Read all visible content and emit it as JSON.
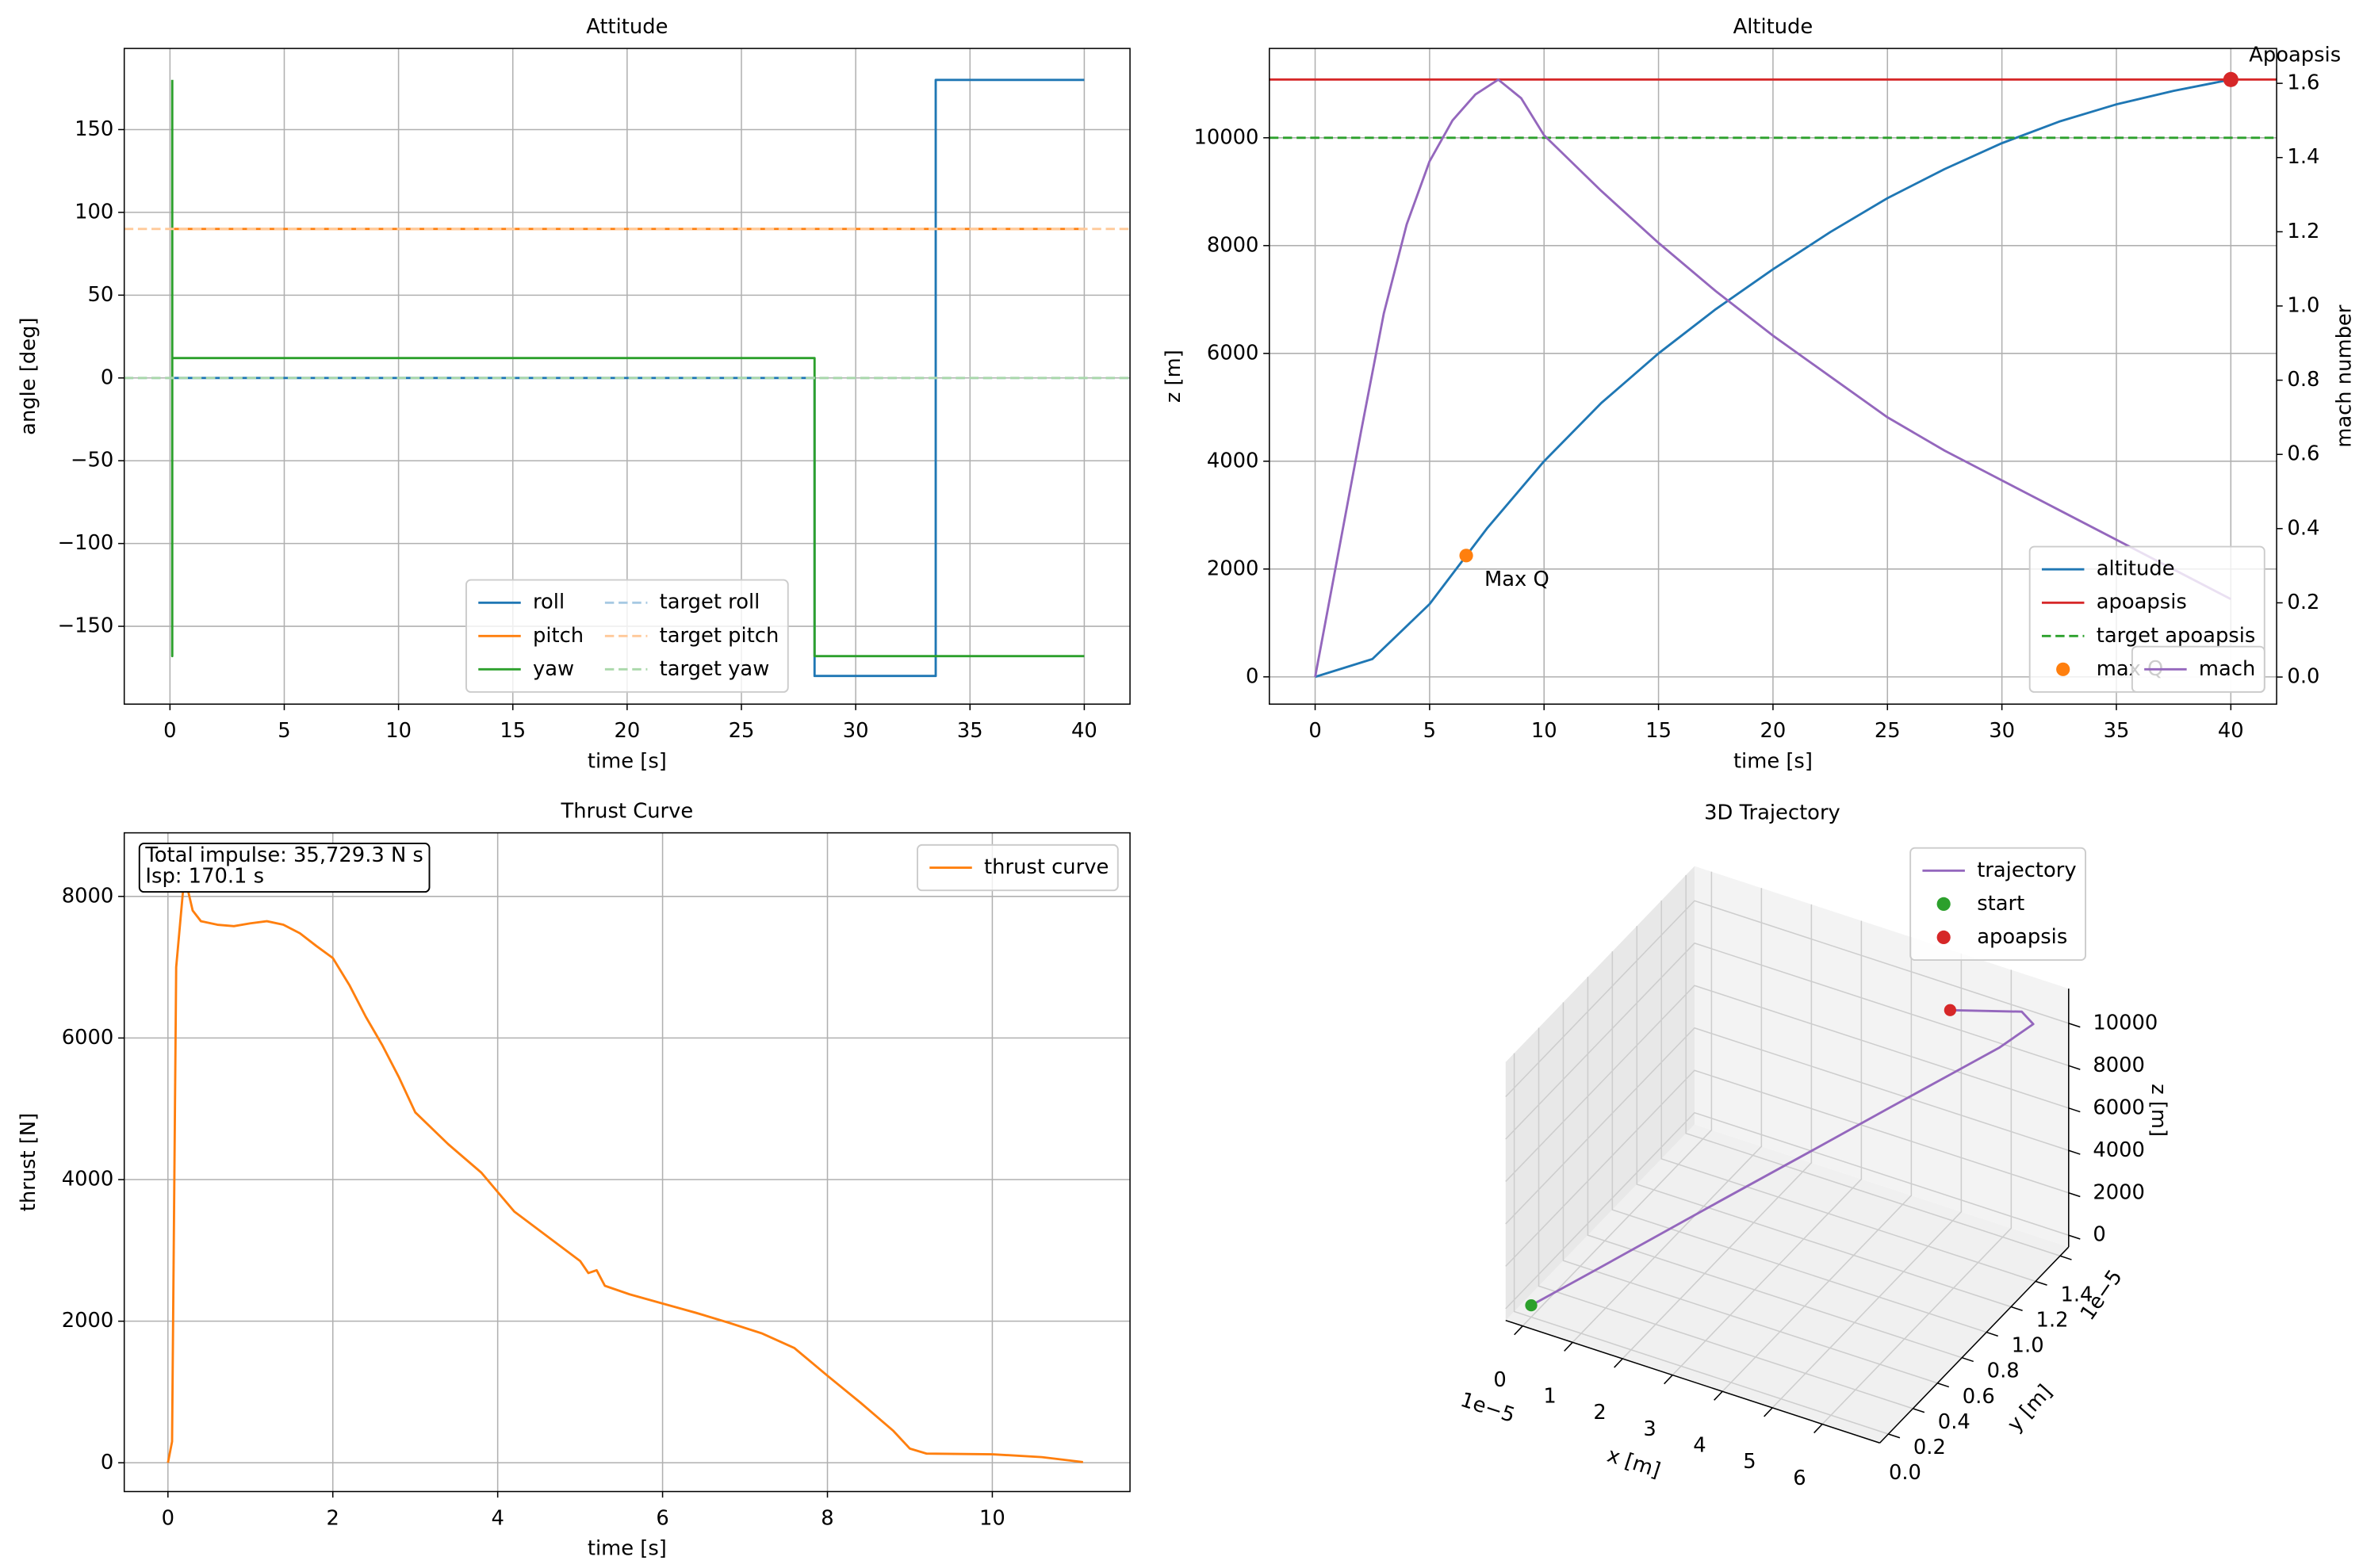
{
  "chart_data": [
    {
      "type": "line",
      "title": "Attitude",
      "xlabel": "time [s]",
      "ylabel": "angle [deg]",
      "xlim": [
        -2,
        42
      ],
      "ylim": [
        -197,
        199
      ],
      "xticks": [
        0,
        5,
        10,
        15,
        20,
        25,
        30,
        35,
        40
      ],
      "yticks": [
        {
          "value": -150,
          "label": "−150"
        },
        {
          "value": -100,
          "label": "−100"
        },
        {
          "value": -50,
          "label": "−50"
        },
        0,
        50,
        100,
        150
      ],
      "grid": true,
      "legend": "lower center",
      "legend_columns": 2,
      "series": [
        {
          "name": "roll",
          "color": "#1f77b4",
          "x": [
            0,
            28.2,
            28.2,
            33.5,
            33.5,
            40
          ],
          "values": [
            0,
            0,
            -180,
            -180,
            180,
            180
          ]
        },
        {
          "name": "pitch",
          "color": "#ff7f0e",
          "x": [
            0,
            40
          ],
          "values": [
            90,
            90
          ]
        },
        {
          "name": "yaw",
          "color": "#2ca02c",
          "x": [
            0.1,
            0.1,
            0.1,
            28.2,
            28.2,
            40
          ],
          "values": [
            180,
            -168,
            12,
            12,
            -168,
            -168
          ]
        },
        {
          "name": "target roll",
          "color": "#a6c9e3",
          "style": "dashed",
          "kind": "hline",
          "values": [
            0
          ]
        },
        {
          "name": "target pitch",
          "color": "#ffc999",
          "style": "dashed",
          "kind": "hline",
          "values": [
            90
          ]
        },
        {
          "name": "target yaw",
          "color": "#aad8aa",
          "style": "dashed",
          "kind": "hline",
          "values": [
            0
          ]
        }
      ]
    },
    {
      "type": "line",
      "title": "Altitude",
      "xlabel": "time [s]",
      "ylabel": "z [m]",
      "y2label": "mach number",
      "xlim": [
        -2,
        42
      ],
      "ylim": [
        -506,
        11657
      ],
      "y2lim": [
        -0.073,
        1.694
      ],
      "xticks": [
        0,
        5,
        10,
        15,
        20,
        25,
        30,
        35,
        40
      ],
      "yticks": [
        0,
        2000,
        4000,
        6000,
        8000,
        10000
      ],
      "y2ticks": [
        {
          "value": 0,
          "label": "0.0"
        },
        0.2,
        0.4,
        0.6,
        0.8,
        {
          "value": 1,
          "label": "1.0"
        },
        1.2,
        1.4,
        1.6
      ],
      "grid": true,
      "legend": "lower right",
      "series": [
        {
          "name": "altitude",
          "color": "#1f77b4",
          "x": [
            0,
            2.5,
            5,
            7.5,
            10,
            12.5,
            15,
            17.5,
            20,
            22.5,
            25,
            27.5,
            30,
            32.5,
            35,
            37.5,
            40
          ],
          "values": [
            0,
            330,
            1350,
            2750,
            4000,
            5080,
            6000,
            6820,
            7560,
            8250,
            8880,
            9420,
            9900,
            10300,
            10620,
            10870,
            11080
          ]
        },
        {
          "name": "apoapsis",
          "color": "#d62728",
          "kind": "hline",
          "values": [
            11080
          ]
        },
        {
          "name": "target apoapsis",
          "color": "#2ca02c",
          "style": "dashed",
          "kind": "hline",
          "values": [
            10000
          ]
        },
        {
          "name": "max Q",
          "color": "#ff7f0e",
          "kind": "scatter",
          "x": [
            6.6
          ],
          "values": [
            2250
          ]
        },
        {
          "name": "mach",
          "color": "#9467bd",
          "axis": "y2",
          "x": [
            0,
            1,
            2,
            3,
            4,
            5,
            6,
            7,
            8,
            9,
            10,
            12.5,
            15,
            17.5,
            20,
            22.5,
            25,
            27.5,
            30,
            32.5,
            35,
            37.5,
            40
          ],
          "values": [
            0,
            0.33,
            0.66,
            0.98,
            1.22,
            1.39,
            1.5,
            1.57,
            1.61,
            1.56,
            1.46,
            1.31,
            1.17,
            1.04,
            0.92,
            0.81,
            0.7,
            0.61,
            0.53,
            0.45,
            0.37,
            0.29,
            0.21
          ]
        }
      ],
      "annotations": [
        {
          "text": "Max Q",
          "x": 6.6,
          "y": 2250,
          "color": "#ff7f0e"
        },
        {
          "text": "Apoapsis",
          "x": 40,
          "y": 11080,
          "color": "#d62728",
          "marker": true
        }
      ]
    },
    {
      "type": "line",
      "title": "Thrust Curve",
      "xlabel": "time [s]",
      "ylabel": "thrust [N]",
      "xlim": [
        -0.53,
        11.67
      ],
      "ylim": [
        -406,
        8898
      ],
      "xticks": [
        0,
        2,
        4,
        6,
        8,
        10
      ],
      "yticks": [
        0,
        2000,
        4000,
        6000,
        8000
      ],
      "grid": true,
      "legend": "upper right",
      "text_box": [
        "Total impulse: 35,729.3 N s",
        "Isp: 170.1 s"
      ],
      "series": [
        {
          "name": "thrust curve",
          "color": "#ff7f0e",
          "x": [
            0,
            0.05,
            0.1,
            0.2,
            0.3,
            0.4,
            0.6,
            0.8,
            1.0,
            1.2,
            1.4,
            1.6,
            1.8,
            2.0,
            2.2,
            2.4,
            2.6,
            2.8,
            3.0,
            3.4,
            3.8,
            4.2,
            4.6,
            5.0,
            5.1,
            5.2,
            5.3,
            5.6,
            6.0,
            6.4,
            6.8,
            7.2,
            7.6,
            8.0,
            8.4,
            8.8,
            9.0,
            9.2,
            10.0,
            10.6,
            11.1
          ],
          "values": [
            0,
            300,
            7000,
            8300,
            7800,
            7650,
            7600,
            7580,
            7620,
            7650,
            7600,
            7480,
            7300,
            7130,
            6750,
            6300,
            5900,
            5450,
            4950,
            4500,
            4100,
            3550,
            3200,
            2850,
            2680,
            2720,
            2500,
            2380,
            2250,
            2120,
            1980,
            1830,
            1620,
            1230,
            850,
            450,
            200,
            130,
            120,
            80,
            10
          ]
        }
      ]
    },
    {
      "type": "line3d",
      "title": "3D Trajectory",
      "xlabel": "x [m]",
      "ylabel": "y [m]",
      "zlabel": "z [m]",
      "xoffset_text": "1e−5",
      "yoffset_text": "1e−5",
      "xlim": [
        -3.4e-06,
        7.15e-05
      ],
      "ylim": [
        -7e-07,
        1.47e-05
      ],
      "zlim": [
        -554,
        11634
      ],
      "xticks": [
        0,
        {
          "value": 1e-05,
          "label": "1"
        },
        {
          "value": 2e-05,
          "label": "2"
        },
        {
          "value": 3e-05,
          "label": "3"
        },
        {
          "value": 4e-05,
          "label": "4"
        },
        {
          "value": 5e-05,
          "label": "5"
        },
        {
          "value": 6e-05,
          "label": "6"
        }
      ],
      "yticks": [
        {
          "value": 0,
          "label": "0.0"
        },
        {
          "value": 2e-06,
          "label": "0.2"
        },
        {
          "value": 4e-06,
          "label": "0.4"
        },
        {
          "value": 6e-06,
          "label": "0.6"
        },
        {
          "value": 8e-06,
          "label": "0.8"
        },
        {
          "value": 1e-05,
          "label": "1.0"
        },
        {
          "value": 1.2e-05,
          "label": "1.2"
        },
        {
          "value": 1.4e-05,
          "label": "1.4"
        }
      ],
      "zticks": [
        0,
        2000,
        4000,
        6000,
        8000,
        10000
      ],
      "legend": "upper center",
      "series": [
        {
          "name": "trajectory",
          "color": "#9467bd",
          "x": [
            0,
            8.76e-06,
            2.59e-05,
            3.885e-05,
            4.92e-05,
            5.77e-05,
            6.42e-05,
            6.81e-05,
            6.53e-05,
            5.49e-05
          ],
          "y": [
            0,
            1.62e-06,
            4.88e-06,
            7.26e-06,
            9.21e-06,
            1.08e-05,
            1.2e-05,
            1.32e-05,
            1.34e-05,
            1.18e-05
          ],
          "z": [
            0,
            1350,
            4000,
            6000,
            7600,
            8900,
            9900,
            10600,
            10850,
            11080
          ]
        },
        {
          "name": "start",
          "color": "#2ca02c",
          "kind": "scatter",
          "x": [
            0
          ],
          "y": [
            0
          ],
          "z": [
            0
          ]
        },
        {
          "name": "apoapsis",
          "color": "#d62728",
          "kind": "scatter",
          "x": [
            5.49e-05
          ],
          "y": [
            1.18e-05
          ],
          "z": [
            11080
          ]
        }
      ]
    }
  ]
}
